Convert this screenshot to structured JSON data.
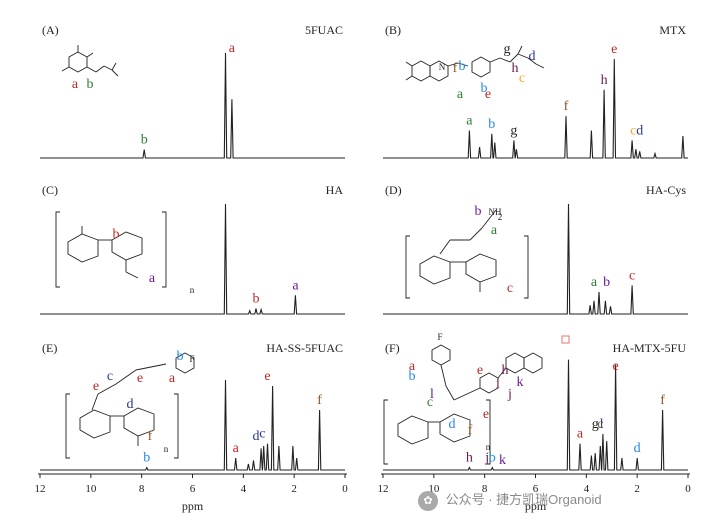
{
  "chart_data": [
    {
      "type": "line",
      "panel": "(A)",
      "name": "5FUAC",
      "peaks": [
        {
          "ppm": 7.9,
          "h": 0.08,
          "label": "b"
        },
        {
          "ppm": 4.7,
          "h": 1.0
        },
        {
          "ppm": 4.45,
          "h": 0.56,
          "label": "a"
        }
      ],
      "peak_labels": [
        {
          "label": "b",
          "ppm": 7.9,
          "color": "#2e7d32"
        },
        {
          "label": "a",
          "ppm": 4.45,
          "color": "#c62828"
        }
      ],
      "struct_labels": [
        {
          "t": "b",
          "color": "#2e7d32"
        },
        {
          "t": "a",
          "color": "#c62828"
        }
      ]
    },
    {
      "type": "line",
      "panel": "(B)",
      "name": "MTX",
      "peaks": [
        {
          "ppm": 8.6,
          "h": 0.25
        },
        {
          "ppm": 8.2,
          "h": 0.1
        },
        {
          "ppm": 7.72,
          "h": 0.22
        },
        {
          "ppm": 7.6,
          "h": 0.14
        },
        {
          "ppm": 6.85,
          "h": 0.16
        },
        {
          "ppm": 6.75,
          "h": 0.08
        },
        {
          "ppm": 4.8,
          "h": 0.38
        },
        {
          "ppm": 3.8,
          "h": 0.25
        },
        {
          "ppm": 3.3,
          "h": 0.62
        },
        {
          "ppm": 2.9,
          "h": 0.9
        },
        {
          "ppm": 2.2,
          "h": 0.16
        },
        {
          "ppm": 2.05,
          "h": 0.08
        },
        {
          "ppm": 1.9,
          "h": 0.06
        },
        {
          "ppm": 1.3,
          "h": 0.04
        },
        {
          "ppm": 0.2,
          "h": 0.2
        }
      ],
      "peak_labels": [
        {
          "label": "a",
          "ppm": 8.6,
          "color": "#2e7d32"
        },
        {
          "label": "b",
          "ppm": 7.72,
          "color": "#1e88e5"
        },
        {
          "label": "g",
          "ppm": 6.85,
          "color": "#222222"
        },
        {
          "label": "f",
          "ppm": 4.8,
          "color": "#8d5524"
        },
        {
          "label": "h",
          "ppm": 3.3,
          "color": "#6a1b4d"
        },
        {
          "label": "e",
          "ppm": 2.9,
          "color": "#c62828"
        },
        {
          "label": "c",
          "ppm": 2.15,
          "color": "#f9a825"
        },
        {
          "label": "d",
          "ppm": 1.9,
          "color": "#283593"
        }
      ],
      "struct_labels": [
        {
          "t": "f",
          "color": "#8d5524"
        },
        {
          "t": "a",
          "color": "#2e7d32"
        },
        {
          "t": "e",
          "color": "#c62828"
        },
        {
          "t": "b",
          "color": "#1e88e5"
        },
        {
          "t": "b",
          "color": "#1e88e5"
        },
        {
          "t": "g",
          "color": "#222222"
        },
        {
          "t": "h",
          "color": "#6a1b4d"
        },
        {
          "t": "c",
          "color": "#f9a825"
        },
        {
          "t": "d",
          "color": "#283593"
        },
        {
          "t": "N",
          "color": "#222222"
        }
      ]
    },
    {
      "type": "line",
      "panel": "(C)",
      "name": "HA",
      "peaks": [
        {
          "ppm": 4.7,
          "h": 1.0
        },
        {
          "ppm": 3.75,
          "h": 0.03
        },
        {
          "ppm": 3.5,
          "h": 0.05
        },
        {
          "ppm": 3.3,
          "h": 0.04
        },
        {
          "ppm": 1.95,
          "h": 0.17
        }
      ],
      "peak_labels": [
        {
          "label": "b",
          "ppm": 3.5,
          "color": "#c62828"
        },
        {
          "label": "a",
          "ppm": 1.95,
          "color": "#6a1b9a"
        }
      ],
      "struct_labels": [
        {
          "t": "b",
          "color": "#c62828"
        },
        {
          "t": "a",
          "color": "#6a1b9a"
        },
        {
          "t": "n",
          "color": "#222222"
        }
      ]
    },
    {
      "type": "line",
      "panel": "(D)",
      "name": "HA-Cys",
      "peaks": [
        {
          "ppm": 4.7,
          "h": 1.0
        },
        {
          "ppm": 3.85,
          "h": 0.08
        },
        {
          "ppm": 3.7,
          "h": 0.12
        },
        {
          "ppm": 3.5,
          "h": 0.2
        },
        {
          "ppm": 3.25,
          "h": 0.12
        },
        {
          "ppm": 3.05,
          "h": 0.07
        },
        {
          "ppm": 2.2,
          "h": 0.26
        }
      ],
      "peak_labels": [
        {
          "label": "a",
          "ppm": 3.7,
          "color": "#2e7d32"
        },
        {
          "label": "b",
          "ppm": 3.2,
          "color": "#6a1b9a"
        },
        {
          "label": "c",
          "ppm": 2.2,
          "color": "#c62828"
        }
      ],
      "struct_labels": [
        {
          "t": "b",
          "color": "#6a1b9a"
        },
        {
          "t": "a",
          "color": "#2e7d32"
        },
        {
          "t": "c",
          "color": "#c62828"
        },
        {
          "t": "NH",
          "color": "#222222"
        },
        {
          "t": "2",
          "color": "#222222"
        }
      ]
    },
    {
      "type": "line",
      "panel": "(E)",
      "name": "HA-SS-5FUAC",
      "peaks": [
        {
          "ppm": 7.8,
          "h": 0.02
        },
        {
          "ppm": 4.7,
          "h": 0.75
        },
        {
          "ppm": 4.3,
          "h": 0.1
        },
        {
          "ppm": 3.8,
          "h": 0.05
        },
        {
          "ppm": 3.6,
          "h": 0.08
        },
        {
          "ppm": 3.3,
          "h": 0.18
        },
        {
          "ppm": 3.2,
          "h": 0.2
        },
        {
          "ppm": 3.05,
          "h": 0.22
        },
        {
          "ppm": 2.85,
          "h": 0.7
        },
        {
          "ppm": 2.6,
          "h": 0.2
        },
        {
          "ppm": 2.05,
          "h": 0.2
        },
        {
          "ppm": 1.9,
          "h": 0.1
        },
        {
          "ppm": 1.0,
          "h": 0.5
        }
      ],
      "peak_labels": [
        {
          "label": "b",
          "ppm": 7.8,
          "color": "#1e88e5"
        },
        {
          "label": "a",
          "ppm": 4.3,
          "color": "#c62828"
        },
        {
          "label": "d",
          "ppm": 3.5,
          "color": "#283593"
        },
        {
          "label": "c",
          "ppm": 3.25,
          "color": "#283593"
        },
        {
          "label": "e",
          "ppm": 3.05,
          "color": "#c62828"
        },
        {
          "label": "f",
          "ppm": 1.0,
          "color": "#8d5524"
        }
      ],
      "struct_labels": [
        {
          "t": "e",
          "color": "#c62828"
        },
        {
          "t": "c",
          "color": "#283593"
        },
        {
          "t": "d",
          "color": "#283593"
        },
        {
          "t": "e",
          "color": "#c62828"
        },
        {
          "t": "a",
          "color": "#c62828"
        },
        {
          "t": "b",
          "color": "#1e88e5"
        },
        {
          "t": "f",
          "color": "#8d5524"
        },
        {
          "t": "n",
          "color": "#222222"
        },
        {
          "t": "F",
          "color": "#222222"
        }
      ]
    },
    {
      "type": "line",
      "panel": "(F)",
      "name": "HA-MTX-5FU",
      "peaks": [
        {
          "ppm": 4.7,
          "h": 0.92
        },
        {
          "ppm": 4.25,
          "h": 0.22
        },
        {
          "ppm": 3.8,
          "h": 0.12
        },
        {
          "ppm": 3.65,
          "h": 0.14
        },
        {
          "ppm": 3.45,
          "h": 0.2
        },
        {
          "ppm": 3.35,
          "h": 0.3
        },
        {
          "ppm": 3.2,
          "h": 0.24
        },
        {
          "ppm": 2.85,
          "h": 0.88
        },
        {
          "ppm": 2.6,
          "h": 0.1
        },
        {
          "ppm": 2.0,
          "h": 0.1
        },
        {
          "ppm": 1.0,
          "h": 0.5
        },
        {
          "ppm": 8.6,
          "h": 0.02
        },
        {
          "ppm": 7.7,
          "h": 0.02
        }
      ],
      "peak_labels": [
        {
          "label": "h",
          "ppm": 8.6,
          "color": "#6a1b4d"
        },
        {
          "label": "j",
          "ppm": 7.9,
          "color": "#6a1b4d"
        },
        {
          "label": "b",
          "ppm": 7.7,
          "color": "#1e88e5"
        },
        {
          "label": "k",
          "ppm": 7.3,
          "color": "#6a1b9a"
        },
        {
          "label": "a",
          "ppm": 4.25,
          "color": "#c62828"
        },
        {
          "label": "g",
          "ppm": 3.65,
          "color": "#222222"
        },
        {
          "label": "c",
          "ppm": 3.45,
          "color": "#2e7d32"
        },
        {
          "label": "l",
          "ppm": 3.4,
          "color": "#6a1b9a"
        },
        {
          "label": "e",
          "ppm": 2.85,
          "color": "#c62828"
        },
        {
          "label": "d",
          "ppm": 2.0,
          "color": "#1e88e5"
        },
        {
          "label": "f",
          "ppm": 1.0,
          "color": "#8d5524"
        }
      ],
      "struct_labels": [
        {
          "t": "e",
          "color": "#c62828"
        },
        {
          "t": "h",
          "color": "#6a1b4d"
        },
        {
          "t": "i",
          "color": "#6a1b4d"
        },
        {
          "t": "j",
          "color": "#6a1b4d"
        },
        {
          "t": "k",
          "color": "#6a1b9a"
        },
        {
          "t": "a",
          "color": "#c62828"
        },
        {
          "t": "b",
          "color": "#1e88e5"
        },
        {
          "t": "c",
          "color": "#2e7d32"
        },
        {
          "t": "l",
          "color": "#6a1b9a"
        },
        {
          "t": "d",
          "color": "#1e88e5"
        },
        {
          "t": "e",
          "color": "#c62828"
        },
        {
          "t": "f",
          "color": "#8d5524"
        },
        {
          "t": "n",
          "color": "#222222"
        },
        {
          "t": "F",
          "color": "#222222"
        }
      ]
    }
  ],
  "x_axis": {
    "label": "ppm",
    "ticks": [
      12,
      10,
      8,
      6,
      4,
      2,
      0
    ],
    "range": [
      12,
      0
    ],
    "direction": "reversed"
  },
  "watermark": {
    "text": "公众号 · 捷方凯瑞Organoid",
    "icon": "wechat-icon"
  }
}
